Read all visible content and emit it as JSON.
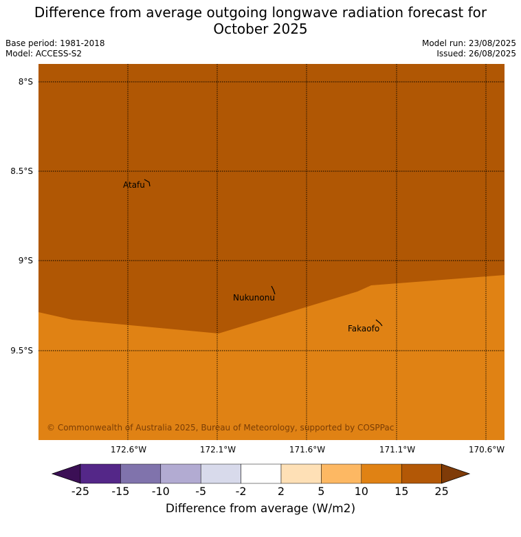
{
  "header": {
    "title_line1": "Difference from average outgoing longwave radiation forecast for",
    "title_line2": "October 2025",
    "base_period": "Base period: 1981-2018",
    "model": "Model: ACCESS-S2",
    "model_run": "Model run: 23/08/2025",
    "issued": "Issued: 26/08/2025"
  },
  "map": {
    "lat_labels": [
      "8°S",
      "8.5°S",
      "9°S",
      "9.5°S"
    ],
    "lon_labels": [
      "172.6°W",
      "172.1°W",
      "171.6°W",
      "171.1°W",
      "170.6°W"
    ],
    "places": [
      "Atafu",
      "Nukunonu",
      "Fakaofo"
    ],
    "copyright": "© Commonwealth of Australia 2025, Bureau of Meteorology, supported by COSPPac",
    "region_colors": {
      "upper": "#b05704",
      "lower": "#e08214"
    }
  },
  "colorbar": {
    "ticks": [
      "-25",
      "-15",
      "-10",
      "-5",
      "-2",
      "2",
      "5",
      "10",
      "15",
      "25"
    ],
    "colors": [
      "#3b0f55",
      "#542788",
      "#8073ac",
      "#b2abd2",
      "#d8daeb",
      "#ffffff",
      "#fee0b6",
      "#fdb863",
      "#e08214",
      "#b35806",
      "#7f3b08"
    ],
    "label": "Difference from average (W/m2)"
  }
}
